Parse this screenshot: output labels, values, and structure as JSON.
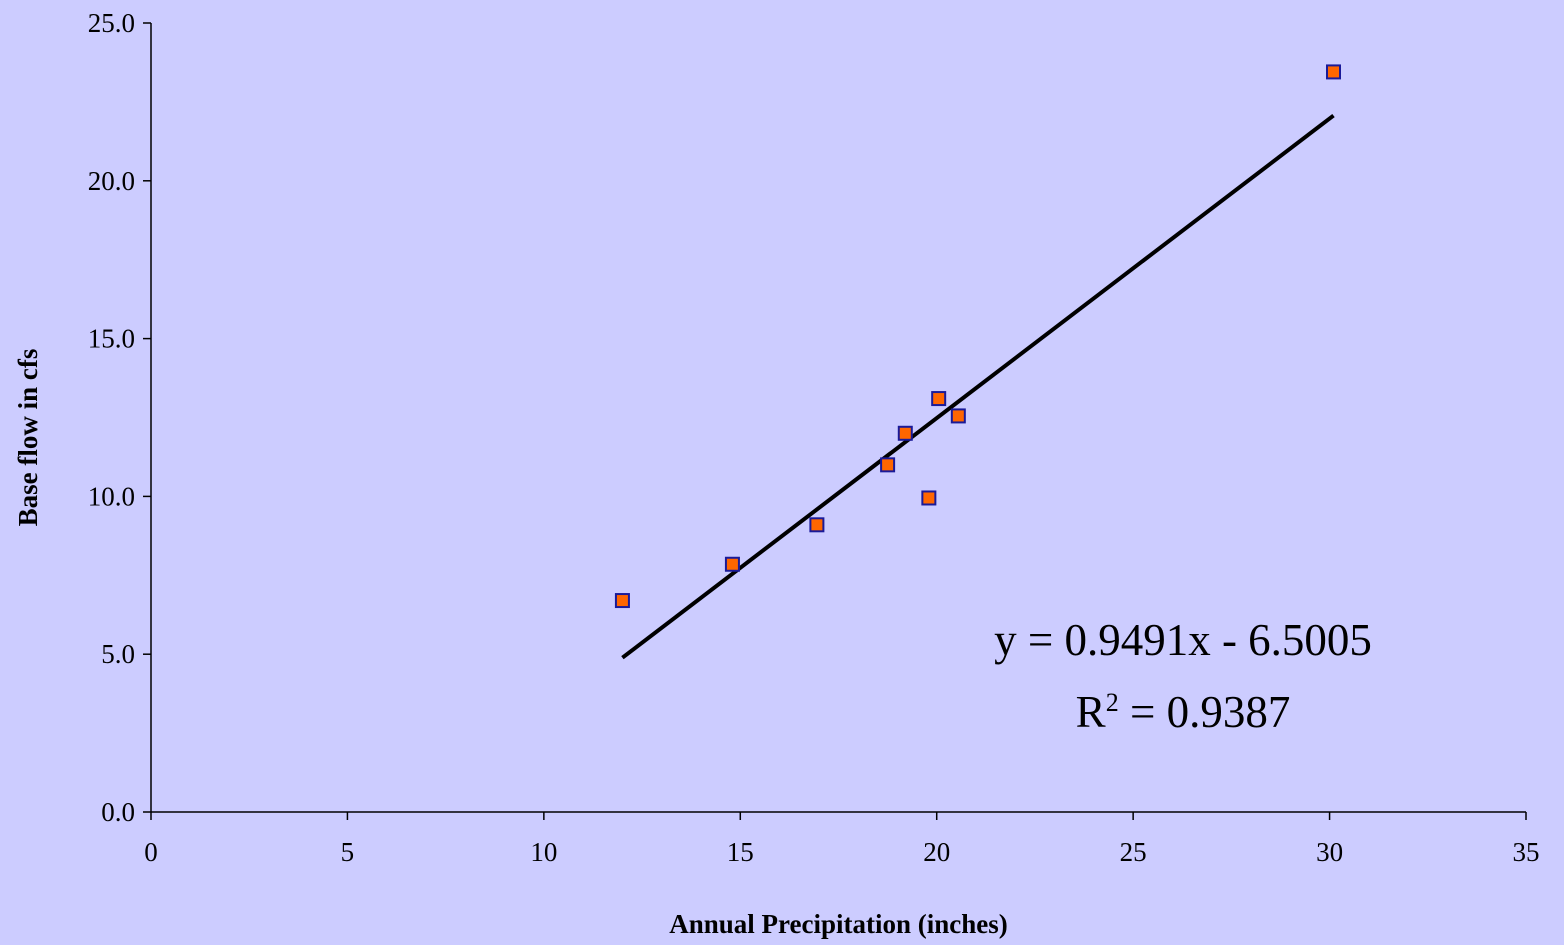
{
  "chart_data": {
    "type": "scatter",
    "xlabel": "Annual Precipitation (inches)",
    "ylabel": "Base flow in cfs",
    "xlim": [
      0,
      35
    ],
    "ylim": [
      0,
      25
    ],
    "x_ticks": [
      "0",
      "5",
      "10",
      "15",
      "20",
      "25",
      "30",
      "35"
    ],
    "y_ticks": [
      "0.0",
      "5.0",
      "10.0",
      "15.0",
      "20.0",
      "25.0"
    ],
    "grid": false,
    "series": [
      {
        "marker": "square",
        "color": "#ff6600",
        "edge_color": "#1a1a99",
        "x": [
          12.0,
          14.8,
          16.95,
          18.75,
          19.2,
          19.8,
          20.05,
          20.55,
          30.1
        ],
        "y": [
          6.7,
          7.85,
          9.1,
          11.0,
          12.0,
          9.95,
          13.1,
          12.55,
          23.45
        ]
      }
    ],
    "trendline": {
      "type": "linear",
      "slope": 0.9491,
      "intercept": -6.5005,
      "x_range": [
        12.0,
        30.1
      ],
      "color": "#000000"
    },
    "annotations": {
      "equation": "y = 0.9491x - 6.5005",
      "r2_prefix": "R",
      "r2_sup": "2",
      "r2_value": " = 0.9387"
    }
  }
}
